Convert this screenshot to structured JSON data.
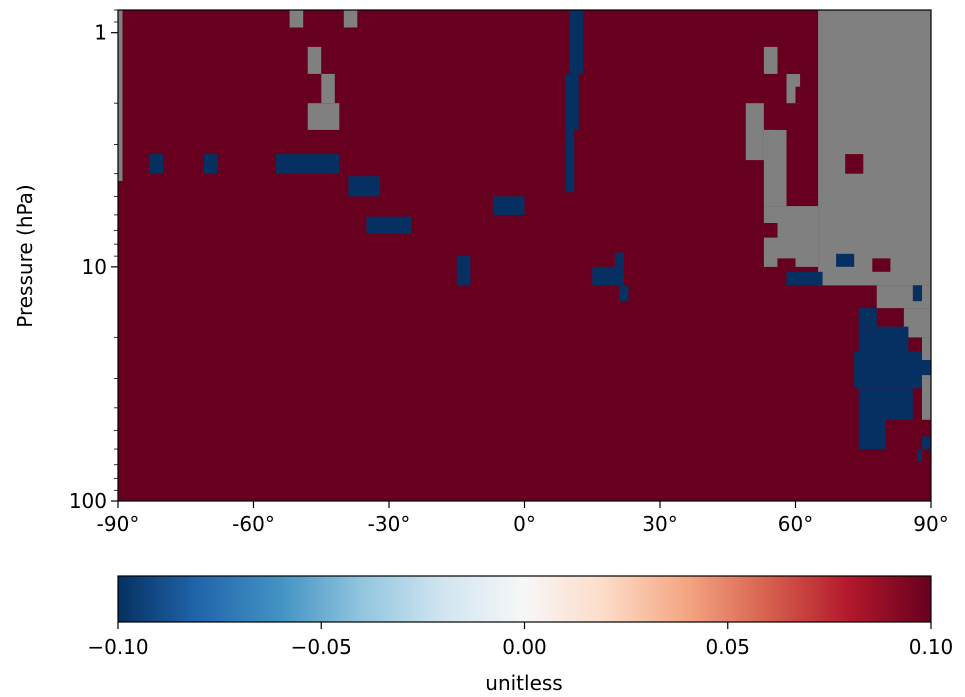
{
  "chart_data": {
    "type": "heatmap",
    "title": "",
    "xlabel": "",
    "ylabel": "Pressure (hPa)",
    "x_range": [
      -90,
      90
    ],
    "y_range_hpa": [
      100,
      0.8
    ],
    "y_scale": "log",
    "x_ticks": [
      {
        "value": -90,
        "label": "-90°"
      },
      {
        "value": -60,
        "label": "-60°"
      },
      {
        "value": -30,
        "label": "-30°"
      },
      {
        "value": 0,
        "label": "0°"
      },
      {
        "value": 30,
        "label": "30°"
      },
      {
        "value": 60,
        "label": "60°"
      },
      {
        "value": 90,
        "label": "90°"
      }
    ],
    "y_ticks": [
      {
        "value": 1,
        "label": "1"
      },
      {
        "value": 10,
        "label": "10"
      },
      {
        "value": 100,
        "label": "100"
      }
    ],
    "background_value": 0.1,
    "missing_color": "#808080",
    "colormap": "RdBu_r",
    "colormap_stops": [
      "#053061",
      "#2166ac",
      "#4393c3",
      "#92c5de",
      "#d1e5f0",
      "#f7f7f7",
      "#fddbc7",
      "#f4a582",
      "#d6604d",
      "#b2182b",
      "#67001f"
    ],
    "colorbar": {
      "orientation": "horizontal",
      "range": [
        -0.1,
        0.1
      ],
      "ticks": [
        {
          "value": -0.1,
          "label": "−0.10"
        },
        {
          "value": -0.05,
          "label": "−0.05"
        },
        {
          "value": 0,
          "label": "0.00"
        },
        {
          "value": 0.05,
          "label": "0.05"
        },
        {
          "value": 0.1,
          "label": "0.10"
        }
      ],
      "label": "unitless"
    },
    "regions": [
      {
        "value": null,
        "lat": [
          -90,
          -89
        ],
        "p": [
          4.3,
          0.8
        ]
      },
      {
        "value": null,
        "lat": [
          -52,
          -49
        ],
        "p": [
          0.95,
          0.8
        ]
      },
      {
        "value": null,
        "lat": [
          -40,
          -37
        ],
        "p": [
          0.95,
          0.8
        ]
      },
      {
        "value": null,
        "lat": [
          -48,
          -45
        ],
        "p": [
          1.5,
          1.15
        ]
      },
      {
        "value": null,
        "lat": [
          -45,
          -42
        ],
        "p": [
          2.0,
          1.5
        ]
      },
      {
        "value": null,
        "lat": [
          -48,
          -41
        ],
        "p": [
          2.6,
          2.0
        ]
      },
      {
        "value": null,
        "lat": [
          65,
          90
        ],
        "p": [
          12,
          0.8
        ]
      },
      {
        "value": null,
        "lat": [
          53,
          65
        ],
        "p": [
          10,
          5.5
        ]
      },
      {
        "value": null,
        "lat": [
          49,
          53
        ],
        "p": [
          3.5,
          2.0
        ]
      },
      {
        "value": null,
        "lat": [
          53,
          56
        ],
        "p": [
          1.5,
          1.15
        ]
      },
      {
        "value": null,
        "lat": [
          58,
          61
        ],
        "p": [
          2.0,
          1.5
        ]
      },
      {
        "value": null,
        "lat": [
          53,
          58
        ],
        "p": [
          5.5,
          2.6
        ]
      },
      {
        "value": null,
        "lat": [
          78,
          90
        ],
        "p": [
          15,
          12
        ]
      },
      {
        "value": null,
        "lat": [
          84,
          90
        ],
        "p": [
          20,
          15
        ]
      },
      {
        "value": null,
        "lat": [
          88,
          90
        ],
        "p": [
          30,
          20
        ]
      },
      {
        "value": null,
        "lat": [
          88,
          90
        ],
        "p": [
          45,
          30
        ]
      },
      {
        "value": 0.1,
        "lat": [
          58,
          63
        ],
        "p": [
          1.5,
          0.95
        ]
      },
      {
        "value": 0.1,
        "lat": [
          55,
          58
        ],
        "p": [
          2.6,
          1.8
        ]
      },
      {
        "value": 0.1,
        "lat": [
          60,
          62
        ],
        "p": [
          2.0,
          1.7
        ]
      },
      {
        "value": 0.1,
        "lat": [
          63,
          65
        ],
        "p": [
          1.5,
          0.95
        ]
      },
      {
        "value": 0.1,
        "lat": [
          71,
          75
        ],
        "p": [
          4.0,
          3.3
        ]
      },
      {
        "value": 0.1,
        "lat": [
          53,
          56
        ],
        "p": [
          7.5,
          6.5
        ]
      },
      {
        "value": 0.1,
        "lat": [
          77,
          81
        ],
        "p": [
          10.5,
          9.2
        ]
      },
      {
        "value": 0.1,
        "lat": [
          56,
          60
        ],
        "p": [
          10.5,
          9.2
        ]
      },
      {
        "value": 0.1,
        "lat": [
          86,
          88
        ],
        "p": [
          14,
          12
        ]
      },
      {
        "value": -0.1,
        "lat": [
          -83,
          -80
        ],
        "p": [
          4.0,
          3.3
        ]
      },
      {
        "value": -0.1,
        "lat": [
          -71,
          -68
        ],
        "p": [
          4.0,
          3.3
        ]
      },
      {
        "value": -0.1,
        "lat": [
          -55,
          -41
        ],
        "p": [
          4.0,
          3.3
        ]
      },
      {
        "value": -0.1,
        "lat": [
          -39,
          -32
        ],
        "p": [
          5.0,
          4.1
        ]
      },
      {
        "value": -0.1,
        "lat": [
          -35,
          -25
        ],
        "p": [
          7.2,
          6.1
        ]
      },
      {
        "value": -0.1,
        "lat": [
          -15,
          -12
        ],
        "p": [
          12,
          9.0
        ]
      },
      {
        "value": -0.1,
        "lat": [
          -7,
          0
        ],
        "p": [
          6.0,
          5.0
        ]
      },
      {
        "value": -0.1,
        "lat": [
          10,
          13
        ],
        "p": [
          1.5,
          0.8
        ]
      },
      {
        "value": -0.1,
        "lat": [
          9,
          12
        ],
        "p": [
          2.6,
          1.5
        ]
      },
      {
        "value": -0.1,
        "lat": [
          9,
          11
        ],
        "p": [
          4.8,
          2.6
        ]
      },
      {
        "value": -0.1,
        "lat": [
          15,
          22
        ],
        "p": [
          12,
          10.0
        ]
      },
      {
        "value": -0.1,
        "lat": [
          20,
          22
        ],
        "p": [
          10.0,
          8.7
        ]
      },
      {
        "value": -0.1,
        "lat": [
          21,
          23
        ],
        "p": [
          14,
          12
        ]
      },
      {
        "value": -0.1,
        "lat": [
          69,
          73
        ],
        "p": [
          10.0,
          8.8
        ]
      },
      {
        "value": -0.1,
        "lat": [
          58,
          66
        ],
        "p": [
          12,
          10.5
        ]
      },
      {
        "value": -0.1,
        "lat": [
          86,
          88
        ],
        "p": [
          14,
          12
        ]
      },
      {
        "value": -0.1,
        "lat": [
          74,
          78
        ],
        "p": [
          18,
          15
        ]
      },
      {
        "value": -0.1,
        "lat": [
          74,
          85
        ],
        "p": [
          23,
          18
        ]
      },
      {
        "value": -0.1,
        "lat": [
          73,
          88
        ],
        "p": [
          33,
          23
        ]
      },
      {
        "value": -0.1,
        "lat": [
          88,
          90
        ],
        "p": [
          29,
          25
        ]
      },
      {
        "value": -0.1,
        "lat": [
          74,
          86
        ],
        "p": [
          45,
          33
        ]
      },
      {
        "value": -0.1,
        "lat": [
          74,
          80
        ],
        "p": [
          60,
          45
        ]
      },
      {
        "value": -0.1,
        "lat": [
          88,
          90
        ],
        "p": [
          60,
          53
        ]
      },
      {
        "value": -0.1,
        "lat": [
          87,
          88
        ],
        "p": [
          68,
          60
        ]
      }
    ]
  }
}
